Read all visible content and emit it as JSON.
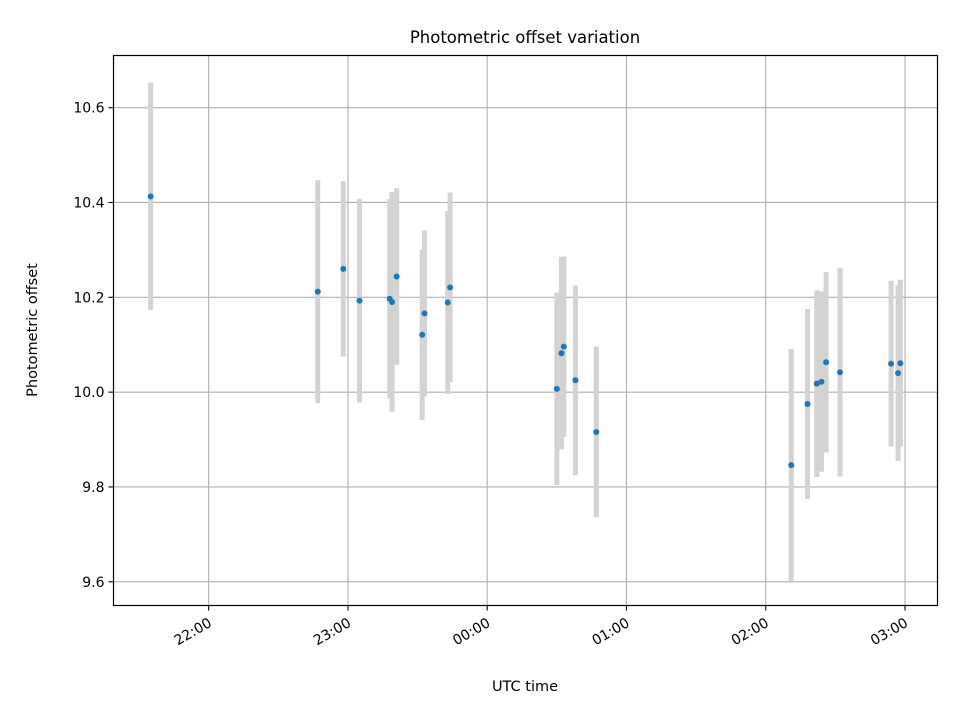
{
  "chart_data": {
    "type": "scatter",
    "title": "Photometric offset variation",
    "xlabel": "UTC time",
    "ylabel": "Photometric offset",
    "xlim": [
      "21:19",
      "03:14"
    ],
    "ylim": [
      9.55,
      10.71
    ],
    "x_ticks": [
      "22:00",
      "23:00",
      "00:00",
      "01:00",
      "02:00",
      "03:00"
    ],
    "y_ticks": [
      9.6,
      9.8,
      10.0,
      10.2,
      10.4,
      10.6
    ],
    "grid": true,
    "point_color": "#1f77b4",
    "errorbar_color": "#d3d3d3",
    "series": [
      {
        "points": [
          {
            "x": "21:35",
            "y": 10.413,
            "err": 0.24
          },
          {
            "x": "22:47",
            "y": 10.212,
            "err": 0.235
          },
          {
            "x": "22:58",
            "y": 10.26,
            "err": 0.185
          },
          {
            "x": "23:05",
            "y": 10.193,
            "err": 0.215
          },
          {
            "x": "23:18",
            "y": 10.197,
            "err": 0.21
          },
          {
            "x": "23:19",
            "y": 10.19,
            "err": 0.232
          },
          {
            "x": "23:21",
            "y": 10.244,
            "err": 0.186
          },
          {
            "x": "23:32",
            "y": 10.121,
            "err": 0.18
          },
          {
            "x": "23:33",
            "y": 10.166,
            "err": 0.175
          },
          {
            "x": "23:43",
            "y": 10.189,
            "err": 0.193
          },
          {
            "x": "23:44",
            "y": 10.221,
            "err": 0.2
          },
          {
            "x": "00:30",
            "y": 10.007,
            "err": 0.203
          },
          {
            "x": "00:32",
            "y": 10.082,
            "err": 0.203
          },
          {
            "x": "00:33",
            "y": 10.096,
            "err": 0.19
          },
          {
            "x": "00:38",
            "y": 10.025,
            "err": 0.2
          },
          {
            "x": "00:47",
            "y": 9.916,
            "err": 0.18
          },
          {
            "x": "02:11",
            "y": 9.846,
            "err": 0.245
          },
          {
            "x": "02:18",
            "y": 9.975,
            "err": 0.2
          },
          {
            "x": "02:22",
            "y": 10.018,
            "err": 0.197
          },
          {
            "x": "02:24",
            "y": 10.022,
            "err": 0.19
          },
          {
            "x": "02:26",
            "y": 10.063,
            "err": 0.19
          },
          {
            "x": "02:32",
            "y": 10.042,
            "err": 0.22
          },
          {
            "x": "02:54",
            "y": 10.06,
            "err": 0.175
          },
          {
            "x": "02:57",
            "y": 10.04,
            "err": 0.185
          },
          {
            "x": "02:58",
            "y": 10.061,
            "err": 0.176
          }
        ]
      }
    ]
  }
}
